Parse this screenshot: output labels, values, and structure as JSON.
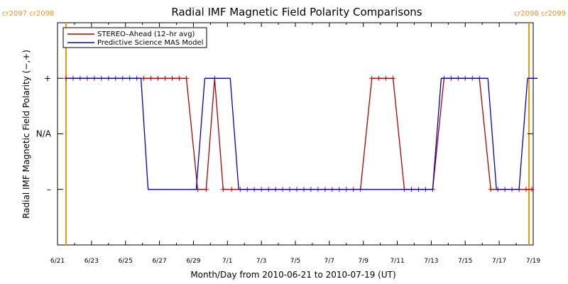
{
  "chart_data": {
    "type": "line",
    "title": "Radial IMF Magnetic Field Polarity Comparisons",
    "xlabel": "Month/Day from 2010-06-21 to 2010-07-19 (UT)",
    "ylabel": "Radial IMF Magnetic Field Polarity (−,+)",
    "xlim": [
      "2010-06-21",
      "2010-07-19"
    ],
    "ylim": [
      -2,
      2
    ],
    "x_ticks": [
      {
        "label": "6/21",
        "x": "2010-06-21"
      },
      {
        "label": "6/23",
        "x": "2010-06-23"
      },
      {
        "label": "6/25",
        "x": "2010-06-25"
      },
      {
        "label": "6/27",
        "x": "2010-06-27"
      },
      {
        "label": "6/29",
        "x": "2010-06-29"
      },
      {
        "label": "7/1",
        "x": "2010-07-01"
      },
      {
        "label": "7/3",
        "x": "2010-07-03"
      },
      {
        "label": "7/5",
        "x": "2010-07-05"
      },
      {
        "label": "7/7",
        "x": "2010-07-07"
      },
      {
        "label": "7/9",
        "x": "2010-07-09"
      },
      {
        "label": "7/11",
        "x": "2010-07-11"
      },
      {
        "label": "7/13",
        "x": "2010-07-13"
      },
      {
        "label": "7/15",
        "x": "2010-07-15"
      },
      {
        "label": "7/17",
        "x": "2010-07-17"
      },
      {
        "label": "7/19",
        "x": "2010-07-19"
      }
    ],
    "y_ticks": [
      {
        "label": "+",
        "y": 1
      },
      {
        "label": "N/A",
        "y": 0
      },
      {
        "label": "–",
        "y": -1
      }
    ],
    "carrington_markers": [
      {
        "label": "cr2097 cr2098",
        "x": "2010-06-21 12:00",
        "align": "left"
      },
      {
        "label": "cr2098 cr2099",
        "x": "2010-07-18 18:00",
        "align": "right"
      }
    ],
    "legend": {
      "placement": "top-left"
    },
    "series": [
      {
        "name": "STEREO–Ahead (12–hr avg)",
        "color": "#b00000",
        "markers": true,
        "points": [
          [
            "2010-06-21 12:00",
            1
          ],
          [
            "2010-06-21 22:00",
            1
          ],
          [
            "2010-06-22 08:00",
            1
          ],
          [
            "2010-06-22 18:00",
            1
          ],
          [
            "2010-06-23 04:00",
            1
          ],
          [
            "2010-06-23 14:00",
            1
          ],
          [
            "2010-06-24 00:00",
            1
          ],
          [
            "2010-06-24 10:00",
            1
          ],
          [
            "2010-06-24 20:00",
            1
          ],
          [
            "2010-06-25 06:00",
            1
          ],
          [
            "2010-06-25 16:00",
            1
          ],
          [
            "2010-06-26 02:00",
            1
          ],
          [
            "2010-06-26 12:00",
            1
          ],
          [
            "2010-06-26 22:00",
            1
          ],
          [
            "2010-06-27 08:00",
            1
          ],
          [
            "2010-06-27 18:00",
            1
          ],
          [
            "2010-06-28 04:00",
            1
          ],
          [
            "2010-06-28 14:00",
            1
          ],
          [
            "2010-06-29 06:00",
            -1
          ],
          [
            "2010-06-29 18:00",
            -1
          ],
          [
            "2010-06-30 06:00",
            1
          ],
          [
            "2010-06-30 18:00",
            -1
          ],
          [
            "2010-07-01 06:00",
            -1
          ],
          [
            "2010-07-01 18:00",
            -1
          ],
          [
            "2010-07-02 04:00",
            -1
          ],
          [
            "2010-07-02 14:00",
            -1
          ],
          [
            "2010-07-03 00:00",
            -1
          ],
          [
            "2010-07-03 10:00",
            -1
          ],
          [
            "2010-07-03 20:00",
            -1
          ],
          [
            "2010-07-04 06:00",
            -1
          ],
          [
            "2010-07-04 16:00",
            -1
          ],
          [
            "2010-07-05 02:00",
            -1
          ],
          [
            "2010-07-05 12:00",
            -1
          ],
          [
            "2010-07-05 22:00",
            -1
          ],
          [
            "2010-07-06 08:00",
            -1
          ],
          [
            "2010-07-06 18:00",
            -1
          ],
          [
            "2010-07-07 04:00",
            -1
          ],
          [
            "2010-07-07 14:00",
            -1
          ],
          [
            "2010-07-08 00:00",
            -1
          ],
          [
            "2010-07-08 10:00",
            -1
          ],
          [
            "2010-07-08 20:00",
            -1
          ],
          [
            "2010-07-09 12:00",
            1
          ],
          [
            "2010-07-09 22:00",
            1
          ],
          [
            "2010-07-10 08:00",
            1
          ],
          [
            "2010-07-10 18:00",
            1
          ],
          [
            "2010-07-11 10:00",
            -1
          ],
          [
            "2010-07-11 20:00",
            -1
          ],
          [
            "2010-07-12 06:00",
            -1
          ],
          [
            "2010-07-12 16:00",
            -1
          ],
          [
            "2010-07-13 02:00",
            -1
          ],
          [
            "2010-07-13 18:00",
            1
          ],
          [
            "2010-07-14 04:00",
            1
          ],
          [
            "2010-07-14 14:00",
            1
          ],
          [
            "2010-07-15 00:00",
            1
          ],
          [
            "2010-07-15 10:00",
            1
          ],
          [
            "2010-07-15 20:00",
            1
          ],
          [
            "2010-07-16 12:00",
            -1
          ],
          [
            "2010-07-16 22:00",
            -1
          ],
          [
            "2010-07-17 08:00",
            -1
          ],
          [
            "2010-07-17 18:00",
            -1
          ],
          [
            "2010-07-18 04:00",
            -1
          ],
          [
            "2010-07-18 14:00",
            -1
          ],
          [
            "2010-07-18 22:00",
            -1
          ]
        ]
      },
      {
        "name": "Predictive Science MAS Model",
        "color": "#0000c0",
        "markers": false,
        "points": [
          [
            "2010-06-21 12:00",
            1
          ],
          [
            "2010-06-25 22:00",
            1
          ],
          [
            "2010-06-26 08:00",
            -1
          ],
          [
            "2010-06-29 04:00",
            -1
          ],
          [
            "2010-06-29 16:00",
            1
          ],
          [
            "2010-07-01 04:00",
            1
          ],
          [
            "2010-07-01 16:00",
            -1
          ],
          [
            "2010-07-13 02:00",
            -1
          ],
          [
            "2010-07-13 14:00",
            1
          ],
          [
            "2010-07-16 08:00",
            1
          ],
          [
            "2010-07-16 20:00",
            -1
          ],
          [
            "2010-07-18 04:00",
            -1
          ],
          [
            "2010-07-18 16:00",
            1
          ],
          [
            "2010-07-19 06:00",
            1
          ]
        ]
      }
    ]
  }
}
